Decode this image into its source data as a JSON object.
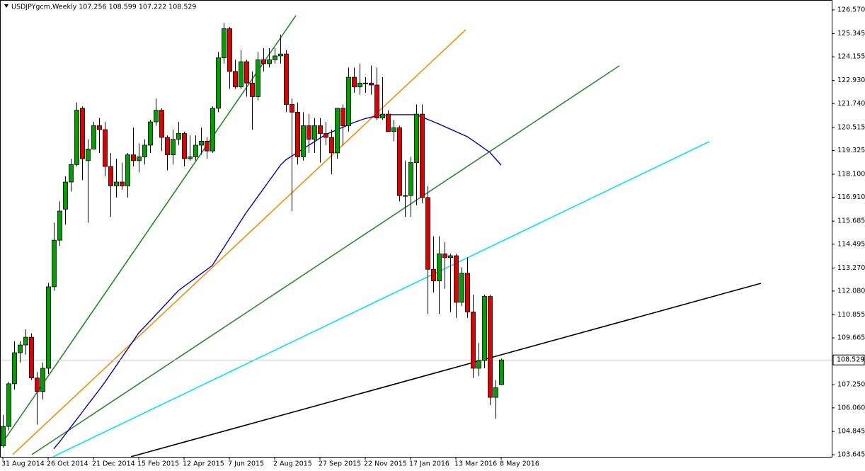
{
  "chart_data": {
    "type": "candlestick",
    "title": "USDJPYgcm,Weekly  107.256 108.599 107.222 108.529",
    "categories": [
      "31 Aug 2014",
      null,
      null,
      null,
      null,
      null,
      null,
      null,
      "26 Oct 2014",
      null,
      null,
      null,
      null,
      null,
      null,
      null,
      "21 Dec 2014",
      null,
      null,
      null,
      null,
      null,
      null,
      null,
      "15 Feb 2015",
      null,
      null,
      null,
      null,
      null,
      null,
      null,
      "12 Apr 2015",
      null,
      null,
      null,
      null,
      null,
      null,
      null,
      "7 Jun 2015",
      null,
      null,
      null,
      null,
      null,
      null,
      null,
      "2 Aug 2015",
      null,
      null,
      null,
      null,
      null,
      null,
      null,
      "27 Sep 2015",
      null,
      null,
      null,
      null,
      null,
      null,
      null,
      "22 Nov 2015",
      null,
      null,
      null,
      null,
      null,
      null,
      null,
      "17 Jan 2016",
      null,
      null,
      null,
      null,
      null,
      null,
      null,
      "13 Mar 2016",
      null,
      null,
      null,
      null,
      null,
      null,
      null,
      "8 May 2016"
    ],
    "open": [
      104.1,
      105.1,
      107.3,
      108.9,
      109.3,
      109.7,
      107.6,
      106.9,
      108.1,
      112.3,
      114.7,
      116.3,
      117.7,
      118.6,
      121.5,
      118.8,
      119.4,
      120.6,
      120.4,
      118.5,
      117.5,
      117.7,
      117.5,
      119.1,
      118.8,
      119.0,
      119.6,
      120.8,
      121.4,
      120.0,
      119.1,
      119.9,
      120.2,
      118.9,
      119.0,
      119.6,
      119.8,
      119.3,
      121.5,
      124.1,
      125.6,
      123.4,
      122.6,
      123.9,
      122.8,
      122.1,
      124.0,
      123.8,
      124.0,
      124.2,
      124.3,
      121.7,
      121.3,
      119.0,
      120.6,
      119.9,
      120.6,
      120.2,
      120.0,
      119.2,
      121.5,
      120.6,
      123.1,
      122.6,
      122.8,
      122.8,
      122.7,
      121.0,
      121.2,
      120.3,
      120.5,
      117.0,
      117.0,
      118.7,
      121.2,
      116.9,
      113.2,
      112.6,
      114.0,
      113.8,
      113.9,
      111.5,
      113.0,
      111.0,
      108.1,
      108.5,
      111.8,
      106.6,
      107.256
    ],
    "high": [
      105.7,
      107.4,
      109.5,
      109.5,
      110.1,
      109.9,
      107.9,
      108.4,
      112.5,
      115.6,
      116.7,
      118.0,
      118.9,
      121.8,
      121.6,
      119.9,
      120.8,
      121.0,
      120.8,
      119.2,
      118.9,
      118.7,
      119.2,
      120.5,
      119.7,
      119.9,
      120.9,
      122.0,
      121.5,
      120.1,
      120.4,
      120.8,
      120.3,
      120.1,
      120.1,
      120.5,
      120.0,
      121.6,
      124.4,
      125.9,
      125.7,
      124.0,
      124.5,
      124.0,
      123.4,
      124.4,
      124.6,
      124.6,
      124.6,
      125.3,
      124.5,
      122.0,
      121.8,
      121.3,
      121.2,
      121.0,
      121.0,
      120.8,
      120.4,
      121.5,
      121.7,
      123.6,
      123.6,
      123.8,
      123.1,
      123.7,
      123.6,
      123.1,
      121.4,
      120.9,
      120.6,
      118.8,
      119.0,
      121.7,
      121.7,
      117.5,
      114.9,
      114.9,
      114.6,
      114.0,
      114.0,
      113.3,
      113.8,
      111.9,
      109.4,
      111.9,
      111.9,
      107.5,
      108.599
    ],
    "low": [
      104.0,
      104.9,
      107.0,
      108.4,
      108.8,
      107.5,
      105.2,
      106.5,
      107.8,
      112.1,
      114.4,
      115.5,
      117.2,
      118.5,
      117.8,
      115.6,
      119.4,
      119.2,
      118.0,
      115.9,
      116.9,
      117.3,
      116.9,
      118.5,
      118.2,
      118.6,
      119.2,
      120.6,
      119.3,
      118.3,
      118.6,
      119.6,
      118.5,
      118.8,
      118.8,
      119.1,
      118.9,
      119.2,
      121.3,
      123.8,
      122.5,
      122.5,
      122.5,
      122.1,
      120.4,
      121.9,
      123.4,
      123.6,
      123.8,
      123.8,
      121.3,
      116.2,
      118.6,
      118.8,
      119.2,
      119.2,
      118.7,
      119.6,
      118.1,
      118.9,
      119.6,
      120.3,
      122.3,
      122.2,
      122.3,
      122.2,
      120.9,
      120.9,
      120.3,
      119.8,
      116.7,
      115.9,
      115.9,
      116.5,
      116.6,
      110.9,
      112.0,
      110.9,
      112.2,
      111.0,
      110.7,
      111.3,
      110.7,
      107.6,
      107.7,
      108.1,
      106.2,
      105.5,
      107.222
    ],
    "close": [
      105.1,
      107.3,
      108.9,
      109.3,
      109.7,
      107.6,
      106.9,
      108.1,
      112.3,
      114.7,
      116.2,
      117.7,
      118.6,
      121.4,
      118.9,
      119.4,
      120.6,
      120.4,
      118.5,
      117.5,
      117.7,
      117.5,
      119.1,
      118.8,
      119.0,
      119.6,
      120.8,
      121.4,
      120.0,
      119.1,
      119.9,
      120.2,
      118.9,
      119.0,
      119.6,
      119.8,
      119.3,
      121.5,
      124.1,
      125.6,
      123.4,
      122.6,
      123.9,
      122.8,
      122.1,
      124.0,
      123.8,
      124.0,
      124.2,
      124.3,
      121.7,
      121.3,
      119.0,
      120.6,
      119.9,
      120.6,
      120.2,
      120.0,
      119.2,
      121.5,
      120.6,
      123.1,
      122.6,
      122.8,
      122.8,
      122.7,
      121.0,
      121.2,
      120.3,
      120.5,
      117.0,
      117.0,
      118.7,
      121.2,
      116.9,
      113.2,
      112.6,
      114.0,
      113.8,
      113.9,
      111.5,
      113.0,
      111.0,
      108.1,
      108.5,
      111.8,
      106.6,
      107.1,
      108.529
    ],
    "up_color": "#00a000",
    "down_color": "#e00000",
    "moving_average": {
      "color": "#0000cc",
      "values": [
        null,
        null,
        null,
        null,
        null,
        null,
        null,
        null,
        null,
        103.95,
        104.3,
        104.68,
        105.07,
        105.45,
        105.83,
        106.22,
        106.6,
        106.98,
        107.37,
        107.8,
        108.22,
        108.65,
        109.07,
        109.5,
        109.92,
        110.23,
        110.54,
        110.85,
        111.16,
        111.47,
        111.79,
        112.1,
        112.32,
        112.53,
        112.75,
        112.97,
        113.18,
        113.4,
        113.86,
        114.31,
        114.77,
        115.22,
        115.68,
        116.13,
        116.53,
        116.94,
        117.34,
        117.75,
        118.15,
        118.56,
        118.85,
        119.03,
        119.22,
        119.4,
        119.59,
        119.77,
        119.96,
        120.14,
        120.27,
        120.39,
        120.52,
        120.64,
        120.77,
        120.87,
        120.97,
        121.04,
        121.09,
        121.13,
        121.17,
        121.17,
        121.17,
        121.17,
        121.17,
        121.17,
        121.05,
        120.93,
        120.81,
        120.69,
        120.56,
        120.43,
        120.3,
        120.17,
        120.04,
        119.84,
        119.64,
        119.43,
        119.23,
        118.9,
        118.57
      ]
    },
    "trendlines": [
      {
        "color": "#1e8c1e",
        "x": [
          -0.5,
          51.75
        ],
        "y": [
          104.08,
          126.28
        ]
      },
      {
        "color": "#ff8c00",
        "x": [
          1.75,
          81.75
        ],
        "y": [
          103.65,
          125.55
        ]
      },
      {
        "color": "#2e8b2e",
        "x": [
          5.125,
          108.875
        ],
        "y": [
          103.65,
          123.69
        ]
      },
      {
        "color": "#00e5ff",
        "x": [
          8.875,
          124.75
        ],
        "y": [
          103.54,
          119.78
        ]
      },
      {
        "color": "#000000",
        "x": [
          22.625,
          133.875
        ],
        "y": [
          103.54,
          112.48
        ]
      }
    ],
    "last_price": 108.529,
    "ylim": [
      103.535,
      127.008
    ],
    "yticks": [
      {
        "value": 126.57,
        "label": "126.570"
      },
      125.345,
      124.155,
      {
        "value": 122.93,
        "label": "122.930"
      },
      {
        "value": 121.74,
        "label": "121.740"
      },
      120.515,
      119.325,
      {
        "value": 118.1,
        "label": "118.100"
      },
      {
        "value": 116.91,
        "label": "116.910"
      },
      115.685,
      114.495,
      {
        "value": 113.27,
        "label": "113.270"
      },
      {
        "value": 112.08,
        "label": "112.080"
      },
      110.855,
      109.665,
      {
        "value": 107.25,
        "label": "107.250"
      },
      {
        "value": 106.06,
        "label": "106.060"
      },
      104.845,
      103.645
    ]
  }
}
